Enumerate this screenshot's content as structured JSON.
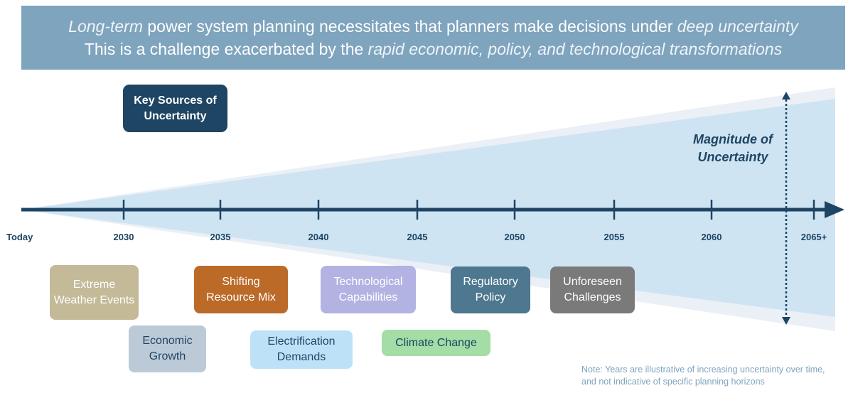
{
  "banner": {
    "line1": {
      "pre": "Long-term",
      "mid": " power system planning necessitates that planners make decisions under ",
      "post": "deep uncertainty"
    },
    "line2": {
      "pre": "This is a challenge exacerbated by the ",
      "post": "rapid economic, policy, and technological transformations"
    }
  },
  "key_sources_label": "Key Sources of Uncertainty",
  "magnitude_label": "Magnitude of Uncertainty",
  "timeline": {
    "ticks": [
      "Today",
      "2030",
      "2035",
      "2040",
      "2045",
      "2050",
      "2055",
      "2060",
      "2065+"
    ]
  },
  "sources": [
    {
      "label": "Extreme Weather Events",
      "color": "#c4ba98",
      "text_color": "#ffffff"
    },
    {
      "label": "Economic Growth",
      "color": "#bccad7",
      "text_color": "#1e4563"
    },
    {
      "label": "Shifting Resource Mix",
      "color": "#bb6a28",
      "text_color": "#ffffff"
    },
    {
      "label": "Electrification Demands",
      "color": "#bde2f8",
      "text_color": "#1e4563"
    },
    {
      "label": "Technological Capabilities",
      "color": "#b2b3e2",
      "text_color": "#ffffff"
    },
    {
      "label": "Climate Change",
      "color": "#a4dda5",
      "text_color": "#1e4563"
    },
    {
      "label": "Regulatory Policy",
      "color": "#4e7790",
      "text_color": "#ffffff"
    },
    {
      "label": "Unforeseen Challenges",
      "color": "#7a7a7a",
      "text_color": "#ffffff"
    }
  ],
  "note": "Note: Years are illustrative of increasing uncertainty over time, and not indicative of specific planning horizons",
  "colors": {
    "banner": "#7fa4be",
    "axis": "#1e4563",
    "cone_outer": "#eaf0f5",
    "cone_inner": "#cfe4f3"
  }
}
